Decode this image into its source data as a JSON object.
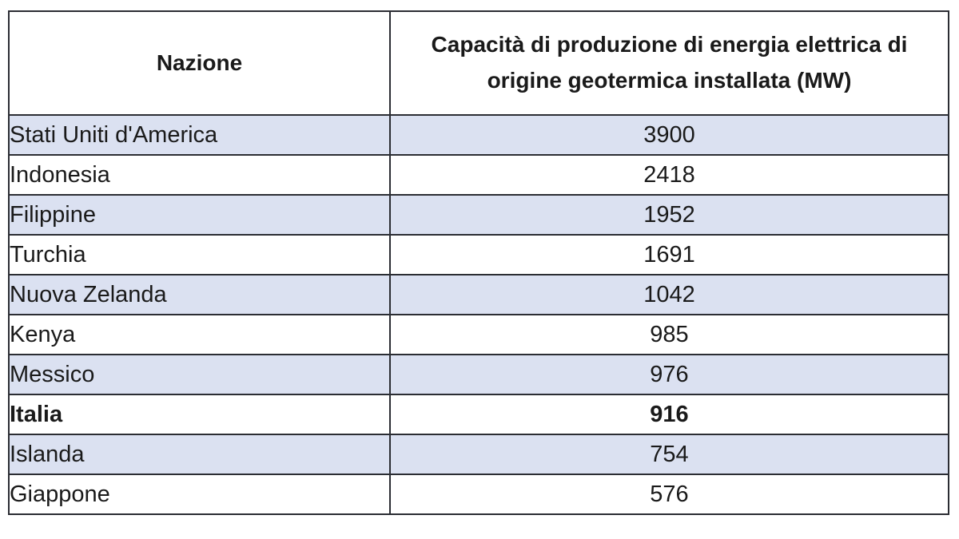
{
  "table": {
    "columns": [
      {
        "label": "Nazione"
      },
      {
        "label": "Capacità di produzione di energia elettrica di origine geotermica installata (MW)"
      }
    ],
    "rows": [
      {
        "nation": "Stati Uniti d'America",
        "capacity_mw": "3900",
        "emphasis": false
      },
      {
        "nation": "Indonesia",
        "capacity_mw": "2418",
        "emphasis": false
      },
      {
        "nation": "Filippine",
        "capacity_mw": "1952",
        "emphasis": false
      },
      {
        "nation": "Turchia",
        "capacity_mw": "1691",
        "emphasis": false
      },
      {
        "nation": "Nuova Zelanda",
        "capacity_mw": "1042",
        "emphasis": false
      },
      {
        "nation": "Kenya",
        "capacity_mw": "985",
        "emphasis": false
      },
      {
        "nation": "Messico",
        "capacity_mw": "976",
        "emphasis": false
      },
      {
        "nation": "Italia",
        "capacity_mw": "916",
        "emphasis": true
      },
      {
        "nation": "Islanda",
        "capacity_mw": "754",
        "emphasis": false
      },
      {
        "nation": "Giappone",
        "capacity_mw": "576",
        "emphasis": false
      }
    ],
    "colors": {
      "row_shade": "#dbe1f1",
      "border": "#2b2d33",
      "text": "#1a1a1a"
    }
  },
  "chart_data": {
    "type": "table",
    "title": "Capacità di produzione di energia elettrica di origine geotermica installata (MW)",
    "categories": [
      "Stati Uniti d'America",
      "Indonesia",
      "Filippine",
      "Turchia",
      "Nuova Zelanda",
      "Kenya",
      "Messico",
      "Italia",
      "Islanda",
      "Giappone"
    ],
    "values": [
      3900,
      2418,
      1952,
      1691,
      1042,
      985,
      976,
      916,
      754,
      576
    ],
    "xlabel": "Nazione",
    "ylabel": "Capacità di produzione di energia elettrica di origine geotermica installata (MW)",
    "highlighted_row": "Italia"
  }
}
